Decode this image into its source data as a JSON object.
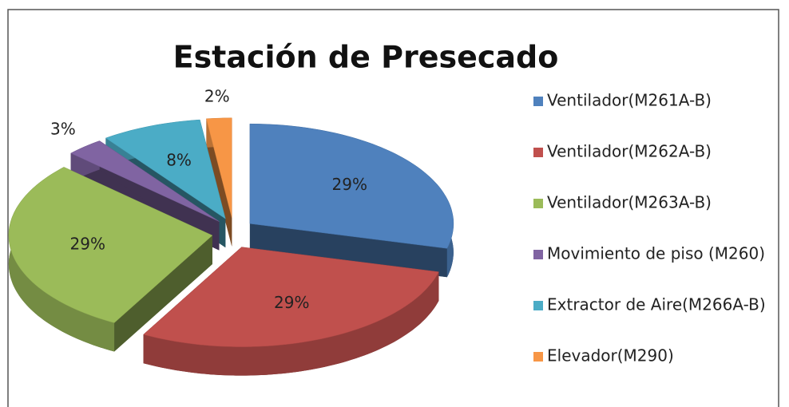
{
  "chart_data": {
    "type": "pie",
    "title": "Estación de Presecado",
    "categories": [
      "Ventilador(M261A-B)",
      "Ventilador(M262A-B)",
      "Ventilador(M263A-B)",
      "Movimiento de piso (M260)",
      "Extractor de Aire(M266A-B)",
      "Elevador(M290)"
    ],
    "values": [
      29,
      29,
      29,
      3,
      8,
      2
    ],
    "value_labels": [
      "29%",
      "29%",
      "29%",
      "3%",
      "8%",
      "2%"
    ],
    "colors": [
      "#4f81bd",
      "#c0504d",
      "#9bbb59",
      "#8064a2",
      "#4bacc6",
      "#f79646"
    ],
    "legend": "right"
  }
}
